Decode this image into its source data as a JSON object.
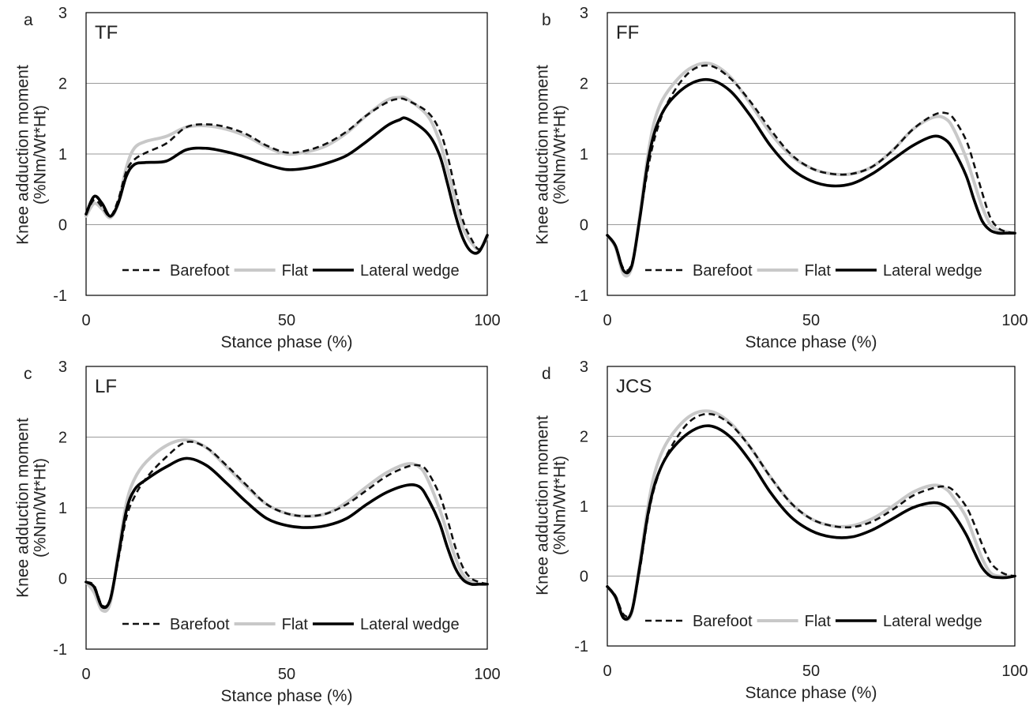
{
  "figure": {
    "legend_labels": [
      "Barefoot",
      "Flat",
      "Lateral wedge"
    ]
  },
  "chart_data": [
    {
      "type": "line",
      "panel_letter": "a",
      "title": "TF",
      "xlabel": "Stance phase (%)",
      "ylabel": "Knee adduction moment",
      "ylabel_units": "(%Nm/Wt*Ht)",
      "xlim": [
        0,
        100
      ],
      "ylim": [
        -1,
        3
      ],
      "xticks": [
        0,
        50,
        100
      ],
      "yticks": [
        -1,
        0,
        1,
        2,
        3
      ],
      "grid": "horizontal",
      "legend": "bottom",
      "x": [
        0,
        2,
        4,
        6,
        8,
        10,
        12,
        15,
        20,
        25,
        30,
        35,
        40,
        45,
        50,
        55,
        60,
        65,
        70,
        75,
        78,
        80,
        85,
        88,
        90,
        92,
        94,
        96,
        98,
        100
      ],
      "series": [
        {
          "name": "Barefoot",
          "style": "dashed",
          "color": "#111111",
          "values": [
            0.15,
            0.35,
            0.25,
            0.12,
            0.35,
            0.75,
            0.92,
            1.02,
            1.15,
            1.38,
            1.42,
            1.38,
            1.28,
            1.12,
            1.02,
            1.05,
            1.15,
            1.32,
            1.55,
            1.73,
            1.78,
            1.76,
            1.6,
            1.35,
            1.0,
            0.5,
            0.05,
            -0.2,
            -0.35,
            -0.18
          ]
        },
        {
          "name": "Flat",
          "style": "solid",
          "color": "#c8c8c8",
          "values": [
            0.12,
            0.3,
            0.22,
            0.1,
            0.3,
            0.8,
            1.08,
            1.18,
            1.25,
            1.38,
            1.4,
            1.35,
            1.25,
            1.1,
            1.0,
            1.03,
            1.12,
            1.3,
            1.55,
            1.76,
            1.8,
            1.78,
            1.55,
            1.2,
            0.8,
            0.35,
            -0.05,
            -0.25,
            -0.35,
            -0.18
          ]
        },
        {
          "name": "Lateral wedge",
          "style": "solid",
          "color": "#000000",
          "values": [
            0.15,
            0.4,
            0.3,
            0.12,
            0.3,
            0.68,
            0.85,
            0.88,
            0.9,
            1.06,
            1.08,
            1.03,
            0.95,
            0.85,
            0.78,
            0.8,
            0.87,
            0.98,
            1.18,
            1.4,
            1.48,
            1.5,
            1.3,
            1.0,
            0.6,
            0.15,
            -0.2,
            -0.38,
            -0.38,
            -0.15
          ]
        }
      ]
    },
    {
      "type": "line",
      "panel_letter": "b",
      "title": "FF",
      "xlabel": "Stance phase (%)",
      "ylabel": "Knee adduction moment",
      "ylabel_units": "(%Nm/Wt*Ht)",
      "xlim": [
        0,
        100
      ],
      "ylim": [
        -1,
        3
      ],
      "xticks": [
        0,
        50,
        100
      ],
      "yticks": [
        -1,
        0,
        1,
        2,
        3
      ],
      "grid": "horizontal",
      "legend": "bottom",
      "x": [
        0,
        2,
        4,
        6,
        8,
        10,
        12,
        15,
        20,
        25,
        30,
        35,
        40,
        45,
        50,
        55,
        60,
        65,
        70,
        75,
        80,
        83,
        85,
        88,
        90,
        92,
        94,
        96,
        98,
        100
      ],
      "series": [
        {
          "name": "Barefoot",
          "style": "dashed",
          "color": "#111111",
          "values": [
            -0.15,
            -0.3,
            -0.62,
            -0.55,
            0.1,
            0.8,
            1.3,
            1.75,
            2.15,
            2.25,
            2.08,
            1.75,
            1.35,
            1.0,
            0.8,
            0.72,
            0.72,
            0.82,
            1.05,
            1.35,
            1.55,
            1.58,
            1.5,
            1.2,
            0.85,
            0.45,
            0.1,
            -0.05,
            -0.1,
            -0.12
          ]
        },
        {
          "name": "Flat",
          "style": "solid",
          "color": "#c8c8c8",
          "values": [
            -0.15,
            -0.32,
            -0.7,
            -0.6,
            0.15,
            1.0,
            1.55,
            1.9,
            2.2,
            2.28,
            2.1,
            1.72,
            1.3,
            0.98,
            0.8,
            0.72,
            0.72,
            0.82,
            1.05,
            1.35,
            1.52,
            1.5,
            1.35,
            0.95,
            0.6,
            0.25,
            0.0,
            -0.08,
            -0.1,
            -0.12
          ]
        },
        {
          "name": "Lateral wedge",
          "style": "solid",
          "color": "#000000",
          "values": [
            -0.15,
            -0.3,
            -0.65,
            -0.58,
            0.1,
            0.9,
            1.38,
            1.72,
            1.98,
            2.05,
            1.9,
            1.55,
            1.12,
            0.8,
            0.62,
            0.55,
            0.58,
            0.72,
            0.92,
            1.12,
            1.25,
            1.2,
            1.05,
            0.7,
            0.35,
            0.05,
            -0.08,
            -0.12,
            -0.12,
            -0.12
          ]
        }
      ]
    },
    {
      "type": "line",
      "panel_letter": "c",
      "title": "LF",
      "xlabel": "Stance phase (%)",
      "ylabel": "Knee adduction moment",
      "ylabel_units": "(%Nm/Wt*Ht)",
      "xlim": [
        0,
        100
      ],
      "ylim": [
        -1,
        3
      ],
      "xticks": [
        0,
        50,
        100
      ],
      "yticks": [
        -1,
        0,
        1,
        2,
        3
      ],
      "grid": "horizontal",
      "legend": "bottom",
      "x": [
        0,
        2,
        4,
        6,
        8,
        10,
        12,
        15,
        20,
        25,
        30,
        35,
        40,
        45,
        50,
        55,
        60,
        65,
        70,
        75,
        80,
        83,
        85,
        88,
        90,
        92,
        94,
        96,
        98,
        100
      ],
      "series": [
        {
          "name": "Barefoot",
          "style": "dashed",
          "color": "#111111",
          "values": [
            -0.05,
            -0.1,
            -0.38,
            -0.3,
            0.25,
            0.85,
            1.15,
            1.42,
            1.72,
            1.93,
            1.85,
            1.6,
            1.32,
            1.05,
            0.92,
            0.88,
            0.92,
            1.05,
            1.25,
            1.45,
            1.58,
            1.6,
            1.52,
            1.2,
            0.85,
            0.45,
            0.15,
            0.0,
            -0.05,
            -0.08
          ]
        },
        {
          "name": "Flat",
          "style": "solid",
          "color": "#c8c8c8",
          "values": [
            -0.05,
            -0.2,
            -0.45,
            -0.35,
            0.35,
            1.05,
            1.4,
            1.65,
            1.88,
            1.96,
            1.85,
            1.58,
            1.3,
            1.05,
            0.92,
            0.88,
            0.92,
            1.08,
            1.3,
            1.5,
            1.62,
            1.58,
            1.42,
            1.0,
            0.65,
            0.3,
            0.05,
            -0.05,
            -0.08,
            -0.08
          ]
        },
        {
          "name": "Lateral wedge",
          "style": "solid",
          "color": "#000000",
          "values": [
            -0.05,
            -0.12,
            -0.4,
            -0.3,
            0.3,
            0.95,
            1.25,
            1.4,
            1.58,
            1.7,
            1.6,
            1.35,
            1.08,
            0.85,
            0.75,
            0.72,
            0.75,
            0.85,
            1.05,
            1.22,
            1.32,
            1.3,
            1.15,
            0.8,
            0.45,
            0.15,
            -0.02,
            -0.08,
            -0.08,
            -0.08
          ]
        }
      ]
    },
    {
      "type": "line",
      "panel_letter": "d",
      "title": "JCS",
      "xlabel": "Stance phase (%)",
      "ylabel": "Knee adduction moment",
      "ylabel_units": "(%Nm/Wt*Ht)",
      "xlim": [
        0,
        100
      ],
      "ylim": [
        -1,
        3
      ],
      "xticks": [
        0,
        50,
        100
      ],
      "yticks": [
        -1,
        0,
        1,
        2,
        3
      ],
      "grid": "horizontal",
      "legend": "bottom",
      "x": [
        0,
        2,
        4,
        6,
        8,
        10,
        12,
        15,
        20,
        25,
        30,
        35,
        40,
        45,
        50,
        55,
        60,
        65,
        70,
        75,
        80,
        83,
        85,
        88,
        90,
        92,
        94,
        96,
        98,
        100
      ],
      "series": [
        {
          "name": "Barefoot",
          "style": "dashed",
          "color": "#111111",
          "values": [
            -0.15,
            -0.28,
            -0.55,
            -0.5,
            0.1,
            0.85,
            1.35,
            1.78,
            2.2,
            2.32,
            2.18,
            1.85,
            1.42,
            1.05,
            0.82,
            0.72,
            0.7,
            0.78,
            0.95,
            1.15,
            1.26,
            1.28,
            1.22,
            1.0,
            0.75,
            0.45,
            0.2,
            0.08,
            0.02,
            0.0
          ]
        },
        {
          "name": "Flat",
          "style": "solid",
          "color": "#c8c8c8",
          "values": [
            -0.15,
            -0.3,
            -0.6,
            -0.52,
            0.2,
            1.0,
            1.55,
            1.95,
            2.28,
            2.36,
            2.2,
            1.85,
            1.42,
            1.05,
            0.82,
            0.72,
            0.72,
            0.82,
            1.0,
            1.2,
            1.3,
            1.25,
            1.12,
            0.85,
            0.55,
            0.25,
            0.05,
            0.0,
            0.0,
            0.0
          ]
        },
        {
          "name": "Lateral wedge",
          "style": "solid",
          "color": "#000000",
          "values": [
            -0.15,
            -0.3,
            -0.6,
            -0.5,
            0.15,
            0.9,
            1.38,
            1.75,
            2.05,
            2.15,
            2.0,
            1.65,
            1.2,
            0.85,
            0.65,
            0.56,
            0.56,
            0.66,
            0.82,
            0.98,
            1.05,
            1.0,
            0.88,
            0.6,
            0.35,
            0.12,
            0.0,
            -0.02,
            -0.02,
            0.0
          ]
        }
      ]
    }
  ]
}
